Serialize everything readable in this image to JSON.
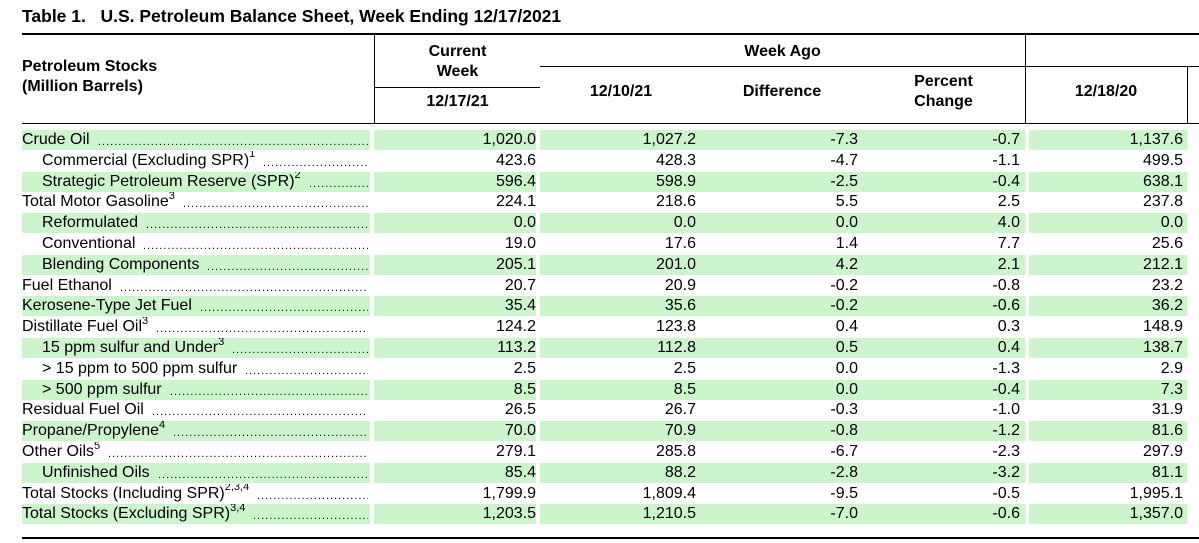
{
  "title": "Table 1.   U.S. Petroleum Balance Sheet, Week Ending 12/17/2021",
  "header": {
    "stub_line1": "Petroleum Stocks",
    "stub_line2": "(Million Barrels)",
    "current_week_line1": "Current",
    "current_week_line2": "Week",
    "current_week_date": "12/17/21",
    "week_ago": "Week Ago",
    "week_ago_date": "12/10/21",
    "difference": "Difference",
    "percent_line1": "Percent",
    "percent_line2": "Change",
    "year_ago_date": "12/18/20"
  },
  "rows": [
    {
      "label": "Crude Oil",
      "sup": "",
      "indent": 0,
      "shade": true,
      "current": "1,020.0",
      "week_ago": "1,027.2",
      "diff": "-7.3",
      "pct": "-0.7",
      "year_ago": "1,137.6"
    },
    {
      "label": "Commercial (Excluding SPR)",
      "sup": "1",
      "indent": 1,
      "shade": false,
      "current": "423.6",
      "week_ago": "428.3",
      "diff": "-4.7",
      "pct": "-1.1",
      "year_ago": "499.5"
    },
    {
      "label": "Strategic Petroleum Reserve (SPR)",
      "sup": "2",
      "indent": 1,
      "shade": true,
      "current": "596.4",
      "week_ago": "598.9",
      "diff": "-2.5",
      "pct": "-0.4",
      "year_ago": "638.1"
    },
    {
      "label": "Total Motor Gasoline",
      "sup": "3",
      "indent": 0,
      "shade": false,
      "current": "224.1",
      "week_ago": "218.6",
      "diff": "5.5",
      "pct": "2.5",
      "year_ago": "237.8"
    },
    {
      "label": "Reformulated",
      "sup": "",
      "indent": 1,
      "shade": true,
      "current": "0.0",
      "week_ago": "0.0",
      "diff": "0.0",
      "pct": "4.0",
      "year_ago": "0.0"
    },
    {
      "label": "Conventional",
      "sup": "",
      "indent": 1,
      "shade": false,
      "current": "19.0",
      "week_ago": "17.6",
      "diff": "1.4",
      "pct": "7.7",
      "year_ago": "25.6"
    },
    {
      "label": "Blending Components",
      "sup": "",
      "indent": 1,
      "shade": true,
      "current": "205.1",
      "week_ago": "201.0",
      "diff": "4.2",
      "pct": "2.1",
      "year_ago": "212.1"
    },
    {
      "label": "Fuel Ethanol",
      "sup": "",
      "indent": 0,
      "shade": false,
      "current": "20.7",
      "week_ago": "20.9",
      "diff": "-0.2",
      "pct": "-0.8",
      "year_ago": "23.2"
    },
    {
      "label": "Kerosene-Type Jet Fuel",
      "sup": "",
      "indent": 0,
      "shade": true,
      "current": "35.4",
      "week_ago": "35.6",
      "diff": "-0.2",
      "pct": "-0.6",
      "year_ago": "36.2"
    },
    {
      "label": "Distillate Fuel Oil",
      "sup": "3",
      "indent": 0,
      "shade": false,
      "current": "124.2",
      "week_ago": "123.8",
      "diff": "0.4",
      "pct": "0.3",
      "year_ago": "148.9"
    },
    {
      "label": "15 ppm sulfur and Under",
      "sup": "3",
      "indent": 1,
      "shade": true,
      "current": "113.2",
      "week_ago": "112.8",
      "diff": "0.5",
      "pct": "0.4",
      "year_ago": "138.7"
    },
    {
      "label": "> 15 ppm to 500 ppm sulfur",
      "sup": "",
      "indent": 1,
      "shade": false,
      "current": "2.5",
      "week_ago": "2.5",
      "diff": "0.0",
      "pct": "-1.3",
      "year_ago": "2.9"
    },
    {
      "label": "> 500 ppm sulfur",
      "sup": "",
      "indent": 1,
      "shade": true,
      "current": "8.5",
      "week_ago": "8.5",
      "diff": "0.0",
      "pct": "-0.4",
      "year_ago": "7.3"
    },
    {
      "label": "Residual Fuel Oil",
      "sup": "",
      "indent": 0,
      "shade": false,
      "current": "26.5",
      "week_ago": "26.7",
      "diff": "-0.3",
      "pct": "-1.0",
      "year_ago": "31.9"
    },
    {
      "label": "Propane/Propylene",
      "sup": "4",
      "indent": 0,
      "shade": true,
      "current": "70.0",
      "week_ago": "70.9",
      "diff": "-0.8",
      "pct": "-1.2",
      "year_ago": "81.6"
    },
    {
      "label": "Other Oils",
      "sup": "5",
      "indent": 0,
      "shade": false,
      "current": "279.1",
      "week_ago": "285.8",
      "diff": "-6.7",
      "pct": "-2.3",
      "year_ago": "297.9"
    },
    {
      "label": "Unfinished Oils",
      "sup": "",
      "indent": 1,
      "shade": true,
      "current": "85.4",
      "week_ago": "88.2",
      "diff": "-2.8",
      "pct": "-3.2",
      "year_ago": "81.1"
    },
    {
      "label": "Total Stocks (Including SPR)",
      "sup": "2,3,4",
      "indent": 0,
      "shade": false,
      "current": "1,799.9",
      "week_ago": "1,809.4",
      "diff": "-9.5",
      "pct": "-0.5",
      "year_ago": "1,995.1"
    },
    {
      "label": "Total Stocks (Excluding SPR)",
      "sup": "3,4",
      "indent": 0,
      "shade": true,
      "current": "1,203.5",
      "week_ago": "1,210.5",
      "diff": "-7.0",
      "pct": "-0.6",
      "year_ago": "1,357.0"
    }
  ],
  "colors": {
    "row_shade": "#ccf5cc",
    "rule": "#000000"
  }
}
